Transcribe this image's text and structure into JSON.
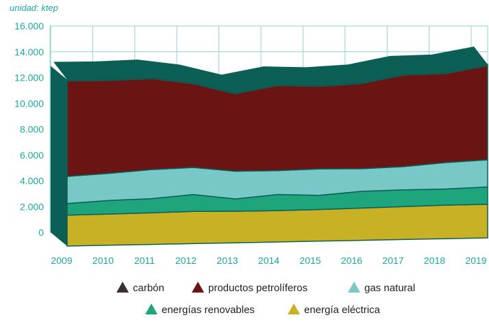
{
  "chart_data": {
    "type": "area",
    "stacked": true,
    "ylabel": "unidad: ktep",
    "ylim": [
      0,
      16000
    ],
    "yticks": [
      0,
      2000,
      4000,
      6000,
      8000,
      10000,
      12000,
      14000,
      16000
    ],
    "ytick_labels": [
      "0",
      "2.000",
      "4.000",
      "6.000",
      "8.000",
      "10.000",
      "12.000",
      "14.000",
      "16.000"
    ],
    "x": [
      "2009",
      "2010",
      "2011",
      "2012",
      "2013",
      "2014",
      "2015",
      "2016",
      "2017",
      "2018",
      "2019"
    ],
    "series": [
      {
        "name": "energía eléctrica",
        "color": "#c9b126",
        "values": [
          2400,
          2420,
          2450,
          2500,
          2450,
          2430,
          2450,
          2500,
          2550,
          2600,
          2600
        ]
      },
      {
        "name": "energías renovables",
        "color": "#1fa57c",
        "values": [
          900,
          1050,
          1100,
          1300,
          950,
          1250,
          1100,
          1300,
          1300,
          1250,
          1350
        ]
      },
      {
        "name": "gas natural",
        "color": "#78c8c8",
        "values": [
          2100,
          2100,
          2250,
          2100,
          2150,
          1850,
          2050,
          1750,
          1800,
          2050,
          2100
        ]
      },
      {
        "name": "productos petrolíferos",
        "color": "#6a1414",
        "values": [
          7400,
          7200,
          7050,
          6500,
          6000,
          6600,
          6400,
          6600,
          7100,
          6900,
          7300
        ]
      },
      {
        "name": "carbón",
        "color": "#3a3030",
        "values": [
          100,
          100,
          100,
          100,
          100,
          100,
          100,
          100,
          100,
          100,
          100
        ]
      }
    ],
    "legend": [
      {
        "label": "carbón",
        "color": "#3a3030"
      },
      {
        "label": "productos petrolíferos",
        "color": "#6a1414"
      },
      {
        "label": "gas natural",
        "color": "#78c8c8"
      },
      {
        "label": "energías renovables",
        "color": "#1fa57c"
      },
      {
        "label": "energía eléctrica",
        "color": "#c9b126"
      }
    ],
    "grid": true,
    "legend_position": "bottom"
  },
  "colors": {
    "axis_text": "#1aa89c",
    "grid": "#8fd4cc",
    "depth_side": "#0c5f55"
  }
}
